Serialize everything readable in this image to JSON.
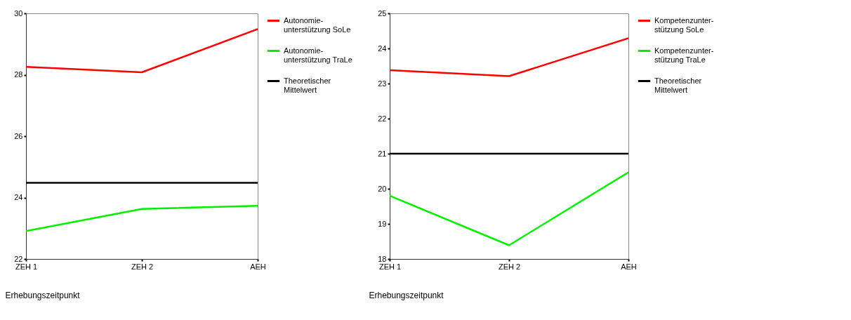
{
  "chart_data": [
    {
      "type": "line",
      "xlabel": "Erhebungszeitpunkt",
      "categories": [
        "ZEH 1",
        "ZEH 2",
        "AEH"
      ],
      "ylim": [
        22,
        30
      ],
      "yticks": [
        22,
        24,
        26,
        28,
        30
      ],
      "grid": false,
      "legend": "right",
      "marker": "none",
      "line_style": "solid",
      "series": [
        {
          "name": "Autonomie-\nunterstützung SoLe",
          "color": "#ff0000",
          "values": [
            28.26,
            28.08,
            29.49
          ]
        },
        {
          "name": "Autonomie-\nunterstützung TraLe",
          "color": "#00ee00",
          "values": [
            22.91,
            23.63,
            23.73
          ]
        },
        {
          "name": "Theoretischer\nMittelwert",
          "color": "#000000",
          "values": [
            24.48,
            24.48,
            24.48
          ]
        }
      ]
    },
    {
      "type": "line",
      "xlabel": "Erhebungszeitpunkt",
      "categories": [
        "ZEH 1",
        "ZEH 2",
        "AEH"
      ],
      "ylim": [
        18,
        25
      ],
      "yticks": [
        18,
        19,
        20,
        21,
        22,
        23,
        24,
        25
      ],
      "grid": false,
      "legend": "right",
      "marker": "none",
      "line_style": "solid",
      "series": [
        {
          "name": "Kompetenzunter-\nstützung SoLe",
          "color": "#ff0000",
          "values": [
            23.38,
            23.21,
            24.29
          ]
        },
        {
          "name": "Kompetenzunter-\nstützung TraLe",
          "color": "#00ee00",
          "values": [
            19.8,
            18.39,
            20.47
          ]
        },
        {
          "name": "Theoretischer\nMittelwert",
          "color": "#000000",
          "values": [
            21,
            21,
            21
          ]
        }
      ]
    }
  ]
}
